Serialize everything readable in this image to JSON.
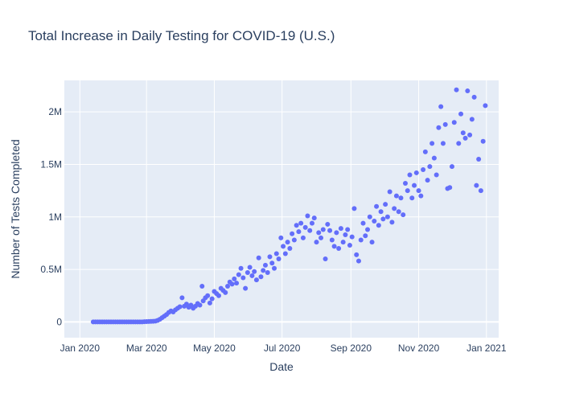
{
  "chart_data": {
    "type": "scatter",
    "title": "Total Increase in Daily Testing for COVID-19 (U.S.)",
    "xlabel": "Date",
    "ylabel": "Number of Tests Completed",
    "x_axis": "date",
    "xlim": [
      "2019-12-18",
      "2021-01-12"
    ],
    "ylim": [
      -150000,
      2300000
    ],
    "x_ticks": [
      {
        "value": "2020-01-01",
        "label": "Jan 2020"
      },
      {
        "value": "2020-03-01",
        "label": "Mar 2020"
      },
      {
        "value": "2020-05-01",
        "label": "May 2020"
      },
      {
        "value": "2020-07-01",
        "label": "Jul 2020"
      },
      {
        "value": "2020-09-01",
        "label": "Sep 2020"
      },
      {
        "value": "2020-11-01",
        "label": "Nov 2020"
      },
      {
        "value": "2021-01-01",
        "label": "Jan 2021"
      }
    ],
    "y_ticks": [
      {
        "value": 0,
        "label": "0"
      },
      {
        "value": 500000,
        "label": "0.5M"
      },
      {
        "value": 1000000,
        "label": "1M"
      },
      {
        "value": 1500000,
        "label": "1.5M"
      },
      {
        "value": 2000000,
        "label": "2M"
      }
    ],
    "grid": true,
    "marker_color": "#636efa",
    "plot_background": "#e5ecf6",
    "series": [
      {
        "points": [
          [
            "2020-01-13",
            0
          ],
          [
            "2020-01-15",
            0
          ],
          [
            "2020-01-17",
            0
          ],
          [
            "2020-01-19",
            0
          ],
          [
            "2020-01-21",
            0
          ],
          [
            "2020-01-23",
            0
          ],
          [
            "2020-01-25",
            0
          ],
          [
            "2020-01-27",
            0
          ],
          [
            "2020-01-29",
            0
          ],
          [
            "2020-01-31",
            0
          ],
          [
            "2020-02-02",
            0
          ],
          [
            "2020-02-04",
            0
          ],
          [
            "2020-02-06",
            0
          ],
          [
            "2020-02-08",
            0
          ],
          [
            "2020-02-10",
            0
          ],
          [
            "2020-02-12",
            0
          ],
          [
            "2020-02-14",
            0
          ],
          [
            "2020-02-16",
            0
          ],
          [
            "2020-02-18",
            0
          ],
          [
            "2020-02-20",
            0
          ],
          [
            "2020-02-22",
            0
          ],
          [
            "2020-02-24",
            0
          ],
          [
            "2020-02-26",
            0
          ],
          [
            "2020-02-28",
            2000
          ],
          [
            "2020-03-01",
            3000
          ],
          [
            "2020-03-03",
            4000
          ],
          [
            "2020-03-05",
            5000
          ],
          [
            "2020-03-07",
            6000
          ],
          [
            "2020-03-09",
            8000
          ],
          [
            "2020-03-11",
            15000
          ],
          [
            "2020-03-13",
            25000
          ],
          [
            "2020-03-15",
            40000
          ],
          [
            "2020-03-17",
            55000
          ],
          [
            "2020-03-19",
            70000
          ],
          [
            "2020-03-21",
            90000
          ],
          [
            "2020-03-23",
            105000
          ],
          [
            "2020-03-25",
            95000
          ],
          [
            "2020-03-27",
            115000
          ],
          [
            "2020-03-29",
            130000
          ],
          [
            "2020-03-31",
            145000
          ],
          [
            "2020-04-02",
            230000
          ],
          [
            "2020-04-04",
            150000
          ],
          [
            "2020-04-06",
            170000
          ],
          [
            "2020-04-08",
            140000
          ],
          [
            "2020-04-10",
            160000
          ],
          [
            "2020-04-12",
            130000
          ],
          [
            "2020-04-14",
            150000
          ],
          [
            "2020-04-16",
            175000
          ],
          [
            "2020-04-18",
            160000
          ],
          [
            "2020-04-20",
            340000
          ],
          [
            "2020-04-21",
            200000
          ],
          [
            "2020-04-23",
            230000
          ],
          [
            "2020-04-25",
            250000
          ],
          [
            "2020-04-27",
            180000
          ],
          [
            "2020-04-29",
            220000
          ],
          [
            "2020-05-01",
            290000
          ],
          [
            "2020-05-03",
            270000
          ],
          [
            "2020-05-05",
            250000
          ],
          [
            "2020-05-07",
            320000
          ],
          [
            "2020-05-09",
            300000
          ],
          [
            "2020-05-11",
            280000
          ],
          [
            "2020-05-13",
            340000
          ],
          [
            "2020-05-15",
            380000
          ],
          [
            "2020-05-17",
            360000
          ],
          [
            "2020-05-19",
            410000
          ],
          [
            "2020-05-21",
            370000
          ],
          [
            "2020-05-23",
            450000
          ],
          [
            "2020-05-25",
            510000
          ],
          [
            "2020-05-27",
            420000
          ],
          [
            "2020-05-29",
            320000
          ],
          [
            "2020-05-31",
            470000
          ],
          [
            "2020-06-02",
            520000
          ],
          [
            "2020-06-04",
            440000
          ],
          [
            "2020-06-06",
            480000
          ],
          [
            "2020-06-08",
            400000
          ],
          [
            "2020-06-10",
            610000
          ],
          [
            "2020-06-12",
            430000
          ],
          [
            "2020-06-14",
            490000
          ],
          [
            "2020-06-16",
            540000
          ],
          [
            "2020-06-18",
            470000
          ],
          [
            "2020-06-20",
            620000
          ],
          [
            "2020-06-22",
            560000
          ],
          [
            "2020-06-24",
            510000
          ],
          [
            "2020-06-26",
            650000
          ],
          [
            "2020-06-28",
            600000
          ],
          [
            "2020-06-30",
            800000
          ],
          [
            "2020-07-02",
            720000
          ],
          [
            "2020-07-04",
            650000
          ],
          [
            "2020-07-06",
            760000
          ],
          [
            "2020-07-08",
            700000
          ],
          [
            "2020-07-10",
            840000
          ],
          [
            "2020-07-12",
            780000
          ],
          [
            "2020-07-14",
            920000
          ],
          [
            "2020-07-16",
            860000
          ],
          [
            "2020-07-18",
            940000
          ],
          [
            "2020-07-20",
            800000
          ],
          [
            "2020-07-22",
            900000
          ],
          [
            "2020-07-24",
            1010000
          ],
          [
            "2020-07-26",
            870000
          ],
          [
            "2020-07-28",
            940000
          ],
          [
            "2020-07-30",
            990000
          ],
          [
            "2020-08-01",
            760000
          ],
          [
            "2020-08-03",
            850000
          ],
          [
            "2020-08-05",
            800000
          ],
          [
            "2020-08-07",
            880000
          ],
          [
            "2020-08-09",
            600000
          ],
          [
            "2020-08-11",
            930000
          ],
          [
            "2020-08-13",
            870000
          ],
          [
            "2020-08-15",
            780000
          ],
          [
            "2020-08-17",
            720000
          ],
          [
            "2020-08-19",
            850000
          ],
          [
            "2020-08-21",
            700000
          ],
          [
            "2020-08-23",
            890000
          ],
          [
            "2020-08-25",
            760000
          ],
          [
            "2020-08-27",
            830000
          ],
          [
            "2020-08-29",
            880000
          ],
          [
            "2020-08-31",
            730000
          ],
          [
            "2020-09-02",
            810000
          ],
          [
            "2020-09-04",
            1080000
          ],
          [
            "2020-09-06",
            640000
          ],
          [
            "2020-09-08",
            580000
          ],
          [
            "2020-09-10",
            780000
          ],
          [
            "2020-09-12",
            940000
          ],
          [
            "2020-09-14",
            820000
          ],
          [
            "2020-09-16",
            880000
          ],
          [
            "2020-09-18",
            1000000
          ],
          [
            "2020-09-20",
            760000
          ],
          [
            "2020-09-22",
            960000
          ],
          [
            "2020-09-24",
            1100000
          ],
          [
            "2020-09-26",
            920000
          ],
          [
            "2020-09-28",
            1050000
          ],
          [
            "2020-09-30",
            980000
          ],
          [
            "2020-10-02",
            1120000
          ],
          [
            "2020-10-04",
            1000000
          ],
          [
            "2020-10-06",
            1240000
          ],
          [
            "2020-10-08",
            950000
          ],
          [
            "2020-10-10",
            1080000
          ],
          [
            "2020-10-12",
            1200000
          ],
          [
            "2020-10-14",
            1050000
          ],
          [
            "2020-10-16",
            1180000
          ],
          [
            "2020-10-18",
            1020000
          ],
          [
            "2020-10-20",
            1320000
          ],
          [
            "2020-10-22",
            1250000
          ],
          [
            "2020-10-24",
            1400000
          ],
          [
            "2020-10-26",
            1180000
          ],
          [
            "2020-10-28",
            1300000
          ],
          [
            "2020-10-30",
            1420000
          ],
          [
            "2020-11-01",
            1250000
          ],
          [
            "2020-11-03",
            1200000
          ],
          [
            "2020-11-05",
            1450000
          ],
          [
            "2020-11-07",
            1620000
          ],
          [
            "2020-11-09",
            1350000
          ],
          [
            "2020-11-11",
            1480000
          ],
          [
            "2020-11-13",
            1700000
          ],
          [
            "2020-11-15",
            1560000
          ],
          [
            "2020-11-17",
            1400000
          ],
          [
            "2020-11-19",
            1850000
          ],
          [
            "2020-11-21",
            2050000
          ],
          [
            "2020-11-23",
            1700000
          ],
          [
            "2020-11-25",
            1880000
          ],
          [
            "2020-11-27",
            1270000
          ],
          [
            "2020-11-29",
            1280000
          ],
          [
            "2020-12-01",
            1480000
          ],
          [
            "2020-12-03",
            1900000
          ],
          [
            "2020-12-05",
            2210000
          ],
          [
            "2020-12-07",
            1700000
          ],
          [
            "2020-12-09",
            1980000
          ],
          [
            "2020-12-11",
            1800000
          ],
          [
            "2020-12-13",
            1750000
          ],
          [
            "2020-12-15",
            2200000
          ],
          [
            "2020-12-17",
            1780000
          ],
          [
            "2020-12-19",
            1930000
          ],
          [
            "2020-12-21",
            2140000
          ],
          [
            "2020-12-23",
            1300000
          ],
          [
            "2020-12-25",
            1550000
          ],
          [
            "2020-12-27",
            1250000
          ],
          [
            "2020-12-29",
            1720000
          ],
          [
            "2020-12-31",
            2060000
          ]
        ]
      }
    ]
  }
}
